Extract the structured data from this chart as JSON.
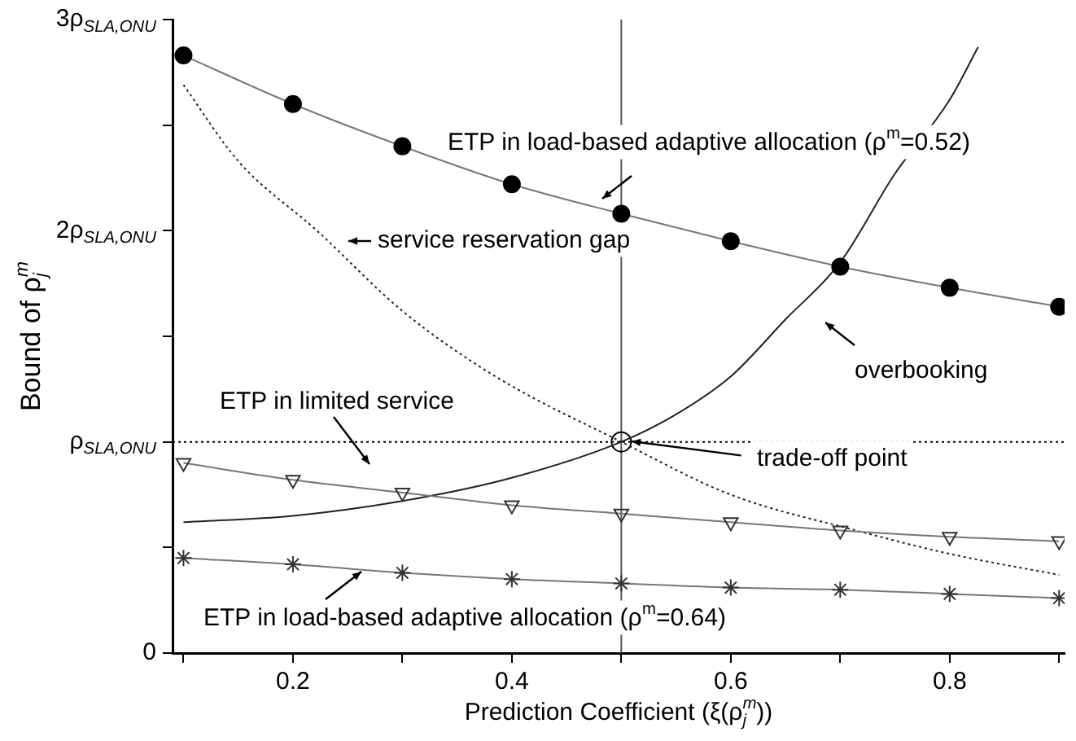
{
  "chart_data": {
    "type": "line",
    "xlabel": "Prediction Coefficient (ξ(ρ$_{j}$$^{m}$))",
    "ylabel": "Bound of ρ$_{j}$$^{m}$",
    "x": [
      0.1,
      0.2,
      0.3,
      0.4,
      0.5,
      0.6,
      0.7,
      0.8,
      0.9
    ],
    "xlim": [
      0.09,
      0.905
    ],
    "xticks": [
      {
        "value": 0.1,
        "label": null
      },
      {
        "value": 0.2,
        "label": "0.2"
      },
      {
        "value": 0.3,
        "label": null
      },
      {
        "value": 0.4,
        "label": "0.4"
      },
      {
        "value": 0.5,
        "label": null
      },
      {
        "value": 0.6,
        "label": "0.6"
      },
      {
        "value": 0.7,
        "label": null
      },
      {
        "value": 0.8,
        "label": "0.8"
      },
      {
        "value": 0.9,
        "label": null
      }
    ],
    "ylim": [
      0,
      3
    ],
    "yticks": [
      0,
      {
        "value": 0.5,
        "label": null
      },
      {
        "value": 1,
        "label": "ρ$_{SLA,ONU}$"
      },
      {
        "value": 1.5,
        "label": null
      },
      {
        "value": 2,
        "label": "2ρ$_{SLA,ONU}$"
      },
      {
        "value": 2.5,
        "label": null
      },
      {
        "value": 3,
        "label": "3ρ$_{SLA,ONU}$"
      }
    ],
    "series": [
      {
        "color": "#000000",
        "marker": "circle",
        "line_style": "solid",
        "values": [
          2.83,
          2.6,
          2.4,
          2.22,
          2.08,
          1.95,
          1.83,
          1.73,
          1.64
        ]
      },
      {
        "color": "#333333",
        "marker": "triangle",
        "line_style": "solid",
        "values": [
          0.9,
          0.82,
          0.76,
          0.7,
          0.66,
          0.62,
          0.58,
          0.55,
          0.53
        ]
      },
      {
        "color": "#333333",
        "marker": "cross",
        "line_style": "solid",
        "values": [
          0.45,
          0.42,
          0.38,
          0.35,
          0.33,
          0.31,
          0.3,
          0.28,
          0.26
        ]
      },
      {
        "color": "#222222",
        "marker": "none",
        "line_style": "dotted",
        "x": [
          0.1,
          0.15,
          0.222,
          0.3,
          0.385,
          0.5,
          0.6,
          0.715,
          0.8,
          0.9
        ],
        "values": [
          2.69,
          2.33,
          2.0,
          1.62,
          1.31,
          1.0,
          0.75,
          0.58,
          0.47,
          0.37
        ]
      },
      {
        "color": "#222222",
        "marker": "none",
        "line_style": "solid",
        "x": [
          0.1,
          0.2,
          0.3,
          0.4,
          0.5,
          0.55,
          0.6,
          0.65,
          0.7,
          0.75,
          0.8,
          0.826
        ],
        "values": [
          0.62,
          0.65,
          0.72,
          0.83,
          1.0,
          1.13,
          1.31,
          1.58,
          1.85,
          2.27,
          2.62,
          2.87
        ]
      },
      {
        "type": "scatter",
        "color": "#000000",
        "marker": "circle",
        "x": [
          0.5
        ],
        "values": [
          1.0
        ]
      }
    ],
    "ref_lines": [
      {
        "axis": "y",
        "value": 1,
        "color": "#000000",
        "line_style": "dotted"
      },
      {
        "axis": "x",
        "value": 0.5,
        "color": "#555555",
        "line_style": "solid"
      }
    ],
    "annotations": [
      "ETP in load-based adaptive allocation (ρ$^{m}$=0.52)",
      "service reservation gap",
      "overbooking",
      "ETP in limited service",
      {
        "text": "trade-off point",
        "x": 0.5,
        "y": 1.0
      },
      "ETP in load-based adaptive allocation (ρ$^{m}$=0.64)"
    ],
    "grid": false,
    "legend": false
  }
}
